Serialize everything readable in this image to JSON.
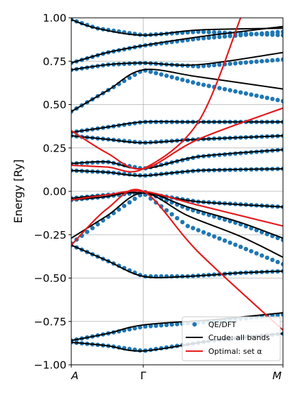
{
  "chart_data": {
    "type": "line",
    "title": "",
    "xlabel": "",
    "ylabel": "Energy [Ry]",
    "ylim": [
      -1.0,
      1.0
    ],
    "xlim": [
      0,
      1
    ],
    "grid": true,
    "yticks": [
      "1.00",
      "0.75",
      "0.50",
      "0.25",
      "0.00",
      "−0.25",
      "−0.50",
      "−0.75",
      "−1.00"
    ],
    "ytick_values": [
      1.0,
      0.75,
      0.5,
      0.25,
      0.0,
      -0.25,
      -0.5,
      -0.75,
      -1.0
    ],
    "kpoints": [
      {
        "label": "A",
        "x": 0.0
      },
      {
        "label": "Γ",
        "x": 0.34
      },
      {
        "label": "M",
        "x": 1.0
      }
    ],
    "legend": {
      "placement": "lower right",
      "entries": [
        {
          "label": "QE/DFT",
          "kind": "marker",
          "color": "#1f77b4"
        },
        {
          "label": "Crude: all bands",
          "kind": "line",
          "color": "#000000"
        },
        {
          "label": "Optimal: set α",
          "kind": "line",
          "color": "#e31a1c"
        }
      ]
    },
    "dft_color": "#1f77b4",
    "crude_color": "#000000",
    "optimal_color": "#e31a1c",
    "crude_bands": [
      {
        "x": [
          0,
          0.17,
          0.34,
          0.67,
          1.0
        ],
        "y": [
          -0.87,
          -0.89,
          -0.92,
          -0.86,
          -0.82
        ]
      },
      {
        "x": [
          0,
          0.17,
          0.34,
          0.67,
          1.0
        ],
        "y": [
          -0.86,
          -0.82,
          -0.77,
          -0.74,
          -0.7
        ]
      },
      {
        "x": [
          0,
          0.17,
          0.34,
          0.55,
          0.8,
          1.0
        ],
        "y": [
          -0.31,
          -0.4,
          -0.49,
          -0.49,
          -0.47,
          -0.46
        ]
      },
      {
        "x": [
          0,
          0.17,
          0.34,
          0.55,
          0.8,
          1.0
        ],
        "y": [
          -0.27,
          -0.14,
          -0.01,
          -0.14,
          -0.26,
          -0.38
        ]
      },
      {
        "x": [
          0,
          0.17,
          0.34,
          0.55,
          0.8,
          1.0
        ],
        "y": [
          -0.05,
          -0.03,
          0.0,
          -0.09,
          -0.18,
          -0.27
        ]
      },
      {
        "x": [
          0,
          0.17,
          0.34,
          0.6,
          1.0
        ],
        "y": [
          -0.04,
          -0.02,
          -0.01,
          -0.06,
          -0.09
        ]
      },
      {
        "x": [
          0,
          0.17,
          0.34,
          0.6,
          1.0
        ],
        "y": [
          0.12,
          0.11,
          0.09,
          0.12,
          0.13
        ]
      },
      {
        "x": [
          0,
          0.17,
          0.34,
          0.6,
          1.0
        ],
        "y": [
          0.16,
          0.17,
          0.13,
          0.2,
          0.24
        ]
      },
      {
        "x": [
          0,
          0.17,
          0.34,
          0.6,
          1.0
        ],
        "y": [
          0.32,
          0.3,
          0.28,
          0.3,
          0.32
        ]
      },
      {
        "x": [
          0,
          0.17,
          0.34,
          0.6,
          1.0
        ],
        "y": [
          0.34,
          0.37,
          0.4,
          0.4,
          0.4
        ]
      },
      {
        "x": [
          0,
          0.17,
          0.34,
          0.6,
          1.0
        ],
        "y": [
          0.46,
          0.58,
          0.7,
          0.66,
          0.59
        ]
      },
      {
        "x": [
          0,
          0.17,
          0.34,
          0.6,
          1.0
        ],
        "y": [
          0.7,
          0.73,
          0.74,
          0.73,
          0.8
        ]
      },
      {
        "x": [
          0,
          0.17,
          0.34,
          0.6,
          1.0
        ],
        "y": [
          0.74,
          0.8,
          0.84,
          0.89,
          0.95
        ]
      },
      {
        "x": [
          0,
          0.12,
          0.34,
          0.6,
          1.0
        ],
        "y": [
          0.99,
          0.94,
          0.9,
          0.93,
          0.94
        ]
      }
    ],
    "optimal_bands": [
      {
        "x": [
          0,
          0.17,
          0.34,
          0.6,
          1.0
        ],
        "y": [
          -0.31,
          -0.1,
          0.0,
          -0.35,
          -0.8
        ]
      },
      {
        "x": [
          0,
          0.17,
          0.34,
          0.6,
          1.0
        ],
        "y": [
          -0.05,
          -0.02,
          0.0,
          -0.08,
          -0.2
        ]
      },
      {
        "x": [
          0,
          0.17,
          0.34,
          0.6,
          1.0
        ],
        "y": [
          0.35,
          0.22,
          0.13,
          0.3,
          0.48
        ]
      },
      {
        "x": [
          0,
          0.17,
          0.34,
          0.6,
          0.8
        ],
        "y": [
          0.15,
          0.14,
          0.13,
          0.4,
          1.0
        ]
      }
    ],
    "dft_bands": [
      {
        "x": [
          0,
          0.17,
          0.34,
          0.67,
          1.0
        ],
        "y": [
          -0.87,
          -0.89,
          -0.92,
          -0.86,
          -0.82
        ]
      },
      {
        "x": [
          0,
          0.17,
          0.34,
          0.67,
          1.0
        ],
        "y": [
          -0.86,
          -0.82,
          -0.78,
          -0.75,
          -0.71
        ]
      },
      {
        "x": [
          0,
          0.17,
          0.34,
          0.55,
          0.8,
          1.0
        ],
        "y": [
          -0.31,
          -0.4,
          -0.49,
          -0.49,
          -0.47,
          -0.46
        ]
      },
      {
        "x": [
          0,
          0.17,
          0.34,
          0.55,
          0.8,
          1.0
        ],
        "y": [
          -0.3,
          -0.15,
          -0.01,
          -0.2,
          -0.32,
          -0.42
        ]
      },
      {
        "x": [
          0,
          0.17,
          0.34,
          0.55,
          0.8,
          1.0
        ],
        "y": [
          -0.05,
          -0.03,
          0.0,
          -0.1,
          -0.19,
          -0.28
        ]
      },
      {
        "x": [
          0,
          0.17,
          0.34,
          0.6,
          1.0
        ],
        "y": [
          -0.04,
          -0.02,
          -0.01,
          -0.06,
          -0.09
        ]
      },
      {
        "x": [
          0,
          0.17,
          0.34,
          0.6,
          1.0
        ],
        "y": [
          0.12,
          0.11,
          0.09,
          0.12,
          0.13
        ]
      },
      {
        "x": [
          0,
          0.17,
          0.34,
          0.6,
          1.0
        ],
        "y": [
          0.16,
          0.17,
          0.13,
          0.2,
          0.24
        ]
      },
      {
        "x": [
          0,
          0.17,
          0.34,
          0.6,
          1.0
        ],
        "y": [
          0.32,
          0.3,
          0.28,
          0.3,
          0.32
        ]
      },
      {
        "x": [
          0,
          0.17,
          0.34,
          0.6,
          1.0
        ],
        "y": [
          0.34,
          0.37,
          0.4,
          0.4,
          0.4
        ]
      },
      {
        "x": [
          0,
          0.17,
          0.34,
          0.6,
          1.0
        ],
        "y": [
          0.46,
          0.58,
          0.7,
          0.62,
          0.52
        ]
      },
      {
        "x": [
          0,
          0.17,
          0.34,
          0.6,
          1.0
        ],
        "y": [
          0.7,
          0.73,
          0.74,
          0.72,
          0.76
        ]
      },
      {
        "x": [
          0,
          0.17,
          0.34,
          0.6,
          1.0
        ],
        "y": [
          0.74,
          0.8,
          0.84,
          0.88,
          0.92
        ]
      },
      {
        "x": [
          0,
          0.12,
          0.34,
          0.6,
          1.0
        ],
        "y": [
          0.99,
          0.94,
          0.9,
          0.92,
          0.9
        ]
      }
    ]
  }
}
